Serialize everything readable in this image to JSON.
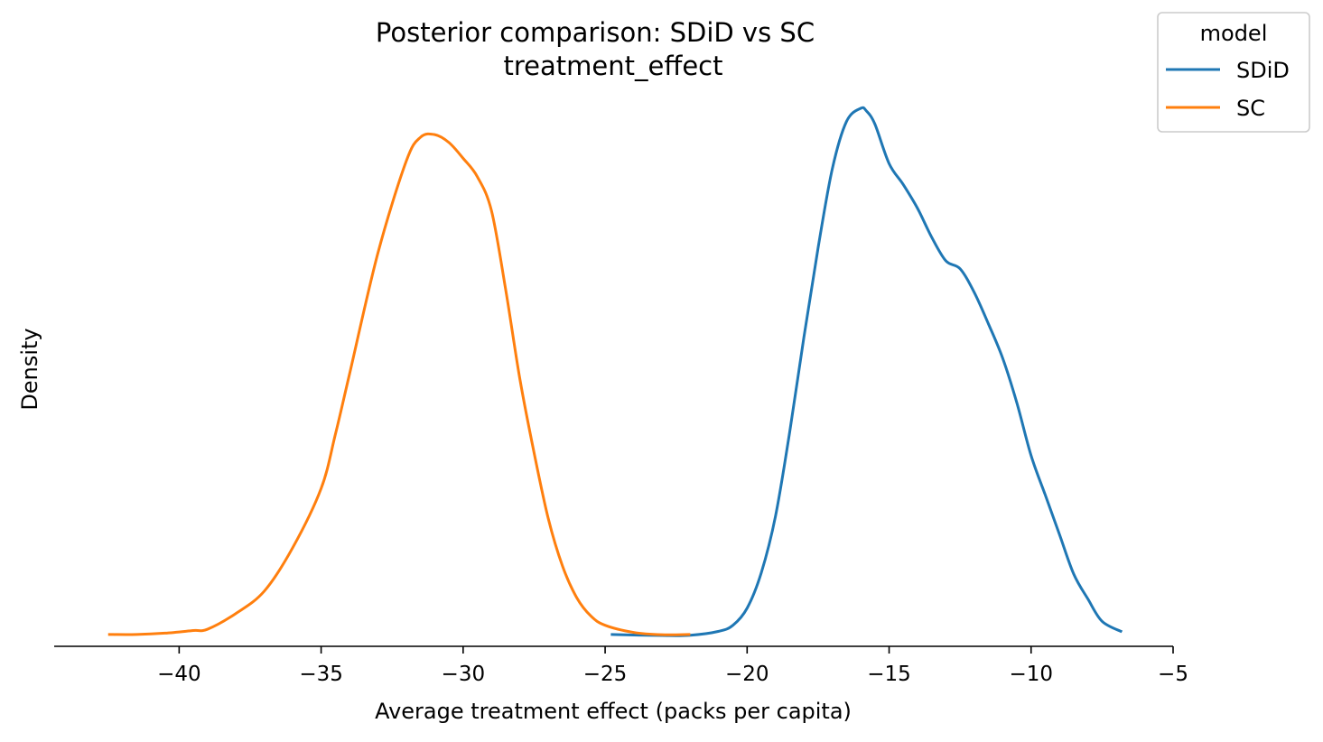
{
  "chart_data": {
    "type": "line",
    "title": "Posterior comparison: SDiD vs SC",
    "subtitle": "treatment_effect",
    "xlabel": "Average treatment effect (packs per capita)",
    "ylabel": "Density",
    "xlim": [
      -44.4,
      -5
    ],
    "ylim": [
      -0.0045,
      0.2
    ],
    "xticks": [
      -40,
      -35,
      -30,
      -25,
      -20,
      -15,
      -10,
      -5
    ],
    "xtick_labels": [
      "−40",
      "−35",
      "−30",
      "−25",
      "−20",
      "−15",
      "−10",
      "−5"
    ],
    "grid": false,
    "legend": {
      "title": "model",
      "position": "top-right"
    },
    "series": [
      {
        "name": "SDiD",
        "color": "#1f77b4",
        "x": [
          -24.8,
          -23.0,
          -22.0,
          -21.0,
          -20.5,
          -20.0,
          -19.5,
          -19.0,
          -18.5,
          -18.0,
          -17.5,
          -17.0,
          -16.5,
          -16.0,
          -15.8,
          -15.5,
          -15.0,
          -14.5,
          -14.0,
          -13.5,
          -13.0,
          -12.5,
          -12.0,
          -11.5,
          -11.0,
          -10.5,
          -10.0,
          -9.5,
          -9.0,
          -8.5,
          -8.0,
          -7.5,
          -6.8
        ],
        "y": [
          0.0,
          -0.0004,
          -0.0003,
          0.0012,
          0.0035,
          0.01,
          0.0235,
          0.045,
          0.077,
          0.113,
          0.147,
          0.177,
          0.195,
          0.2,
          0.199,
          0.194,
          0.179,
          0.171,
          0.162,
          0.151,
          0.142,
          0.139,
          0.13,
          0.118,
          0.105,
          0.088,
          0.068,
          0.053,
          0.038,
          0.023,
          0.0135,
          0.005,
          0.001
        ]
      },
      {
        "name": "SC",
        "color": "#ff7f0e",
        "x": [
          -42.5,
          -41.5,
          -40.5,
          -39.5,
          -39.0,
          -38.0,
          -37.0,
          -36.0,
          -35.0,
          -34.5,
          -34.0,
          -33.0,
          -32.0,
          -31.5,
          -31.0,
          -30.5,
          -30.0,
          -29.5,
          -29.0,
          -28.5,
          -28.0,
          -27.5,
          -27.0,
          -26.5,
          -26.0,
          -25.5,
          -25.0,
          -24.0,
          -23.0,
          -22.0
        ],
        "y": [
          0.0,
          0.0,
          0.0005,
          0.0015,
          0.002,
          0.008,
          0.0165,
          0.033,
          0.0555,
          0.076,
          0.099,
          0.145,
          0.18,
          0.189,
          0.19,
          0.187,
          0.181,
          0.174,
          0.161,
          0.131,
          0.097,
          0.069,
          0.044,
          0.026,
          0.014,
          0.007,
          0.0035,
          0.0008,
          -0.0001,
          0.0
        ]
      }
    ]
  }
}
